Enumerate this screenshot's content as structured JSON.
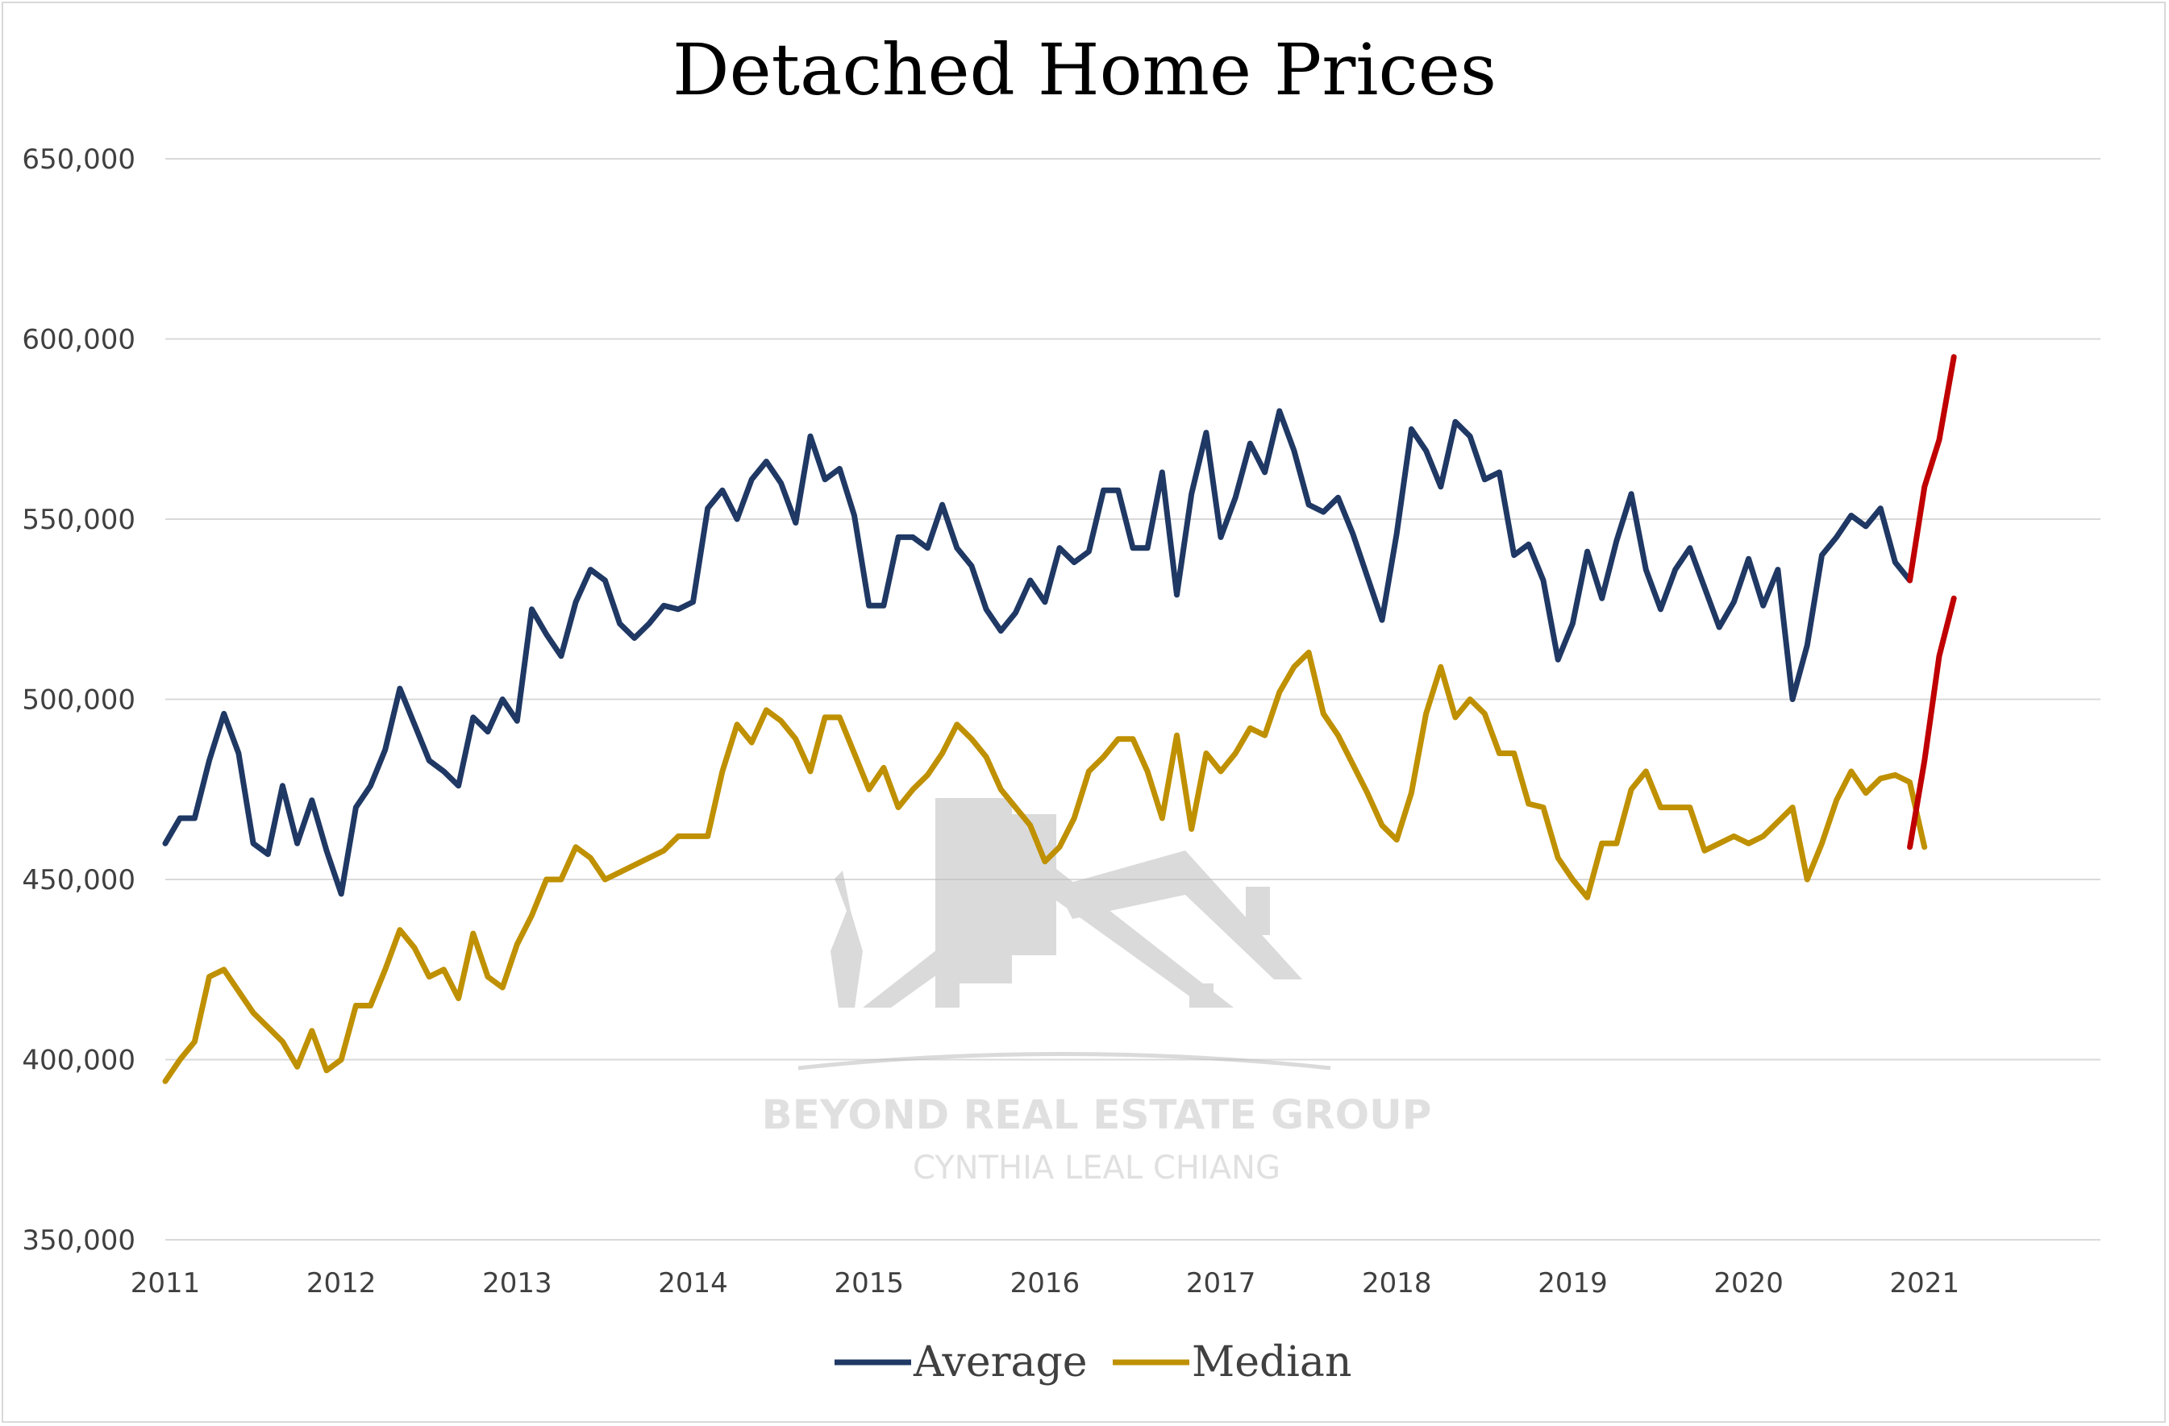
{
  "chart_data": {
    "type": "line",
    "title": "Detached Home Prices",
    "xlabel": "",
    "ylabel": "",
    "x_ticks": [
      "2011",
      "2012",
      "2013",
      "2014",
      "2015",
      "2016",
      "2017",
      "2018",
      "2019",
      "2020",
      "2021"
    ],
    "y_ticks": [
      "350,000",
      "400,000",
      "450,000",
      "500,000",
      "550,000",
      "600,000",
      "650,000"
    ],
    "ylim": [
      350000,
      650000
    ],
    "xlim": [
      2011,
      2022
    ],
    "grid": true,
    "legend_position": "bottom",
    "series": [
      {
        "name": "Average",
        "color": "#1f3864",
        "start": 2011.0,
        "step": 0.08333,
        "values": [
          460000,
          467000,
          467000,
          483000,
          496000,
          485000,
          460000,
          457000,
          476000,
          460000,
          472000,
          458000,
          446000,
          470000,
          476000,
          486000,
          503000,
          493000,
          483000,
          480000,
          476000,
          495000,
          491000,
          500000,
          494000,
          525000,
          518000,
          512000,
          527000,
          536000,
          533000,
          521000,
          517000,
          521000,
          526000,
          525000,
          527000,
          553000,
          558000,
          550000,
          561000,
          566000,
          560000,
          549000,
          573000,
          561000,
          564000,
          551000,
          526000,
          526000,
          545000,
          545000,
          542000,
          554000,
          542000,
          537000,
          525000,
          519000,
          524000,
          533000,
          527000,
          542000,
          538000,
          541000,
          558000,
          558000,
          542000,
          542000,
          563000,
          529000,
          557000,
          574000,
          545000,
          556000,
          571000,
          563000,
          580000,
          569000,
          554000,
          552000,
          556000,
          546000,
          534000,
          522000,
          546000,
          575000,
          569000,
          559000,
          577000,
          573000,
          561000,
          563000,
          540000,
          543000,
          533000,
          511000,
          521000,
          541000,
          528000,
          544000,
          557000,
          536000,
          525000,
          536000,
          542000,
          531000,
          520000,
          527000,
          539000,
          526000,
          536000,
          500000,
          515000,
          540000,
          545000,
          551000,
          548000,
          553000,
          538000,
          533000
        ],
        "forecast": {
          "color": "#c00000",
          "start": 2020.9167,
          "values": [
            533000,
            559000,
            572000,
            595000
          ]
        }
      },
      {
        "name": "Median",
        "color": "#bf9000",
        "start": 2011.0,
        "step": 0.08333,
        "values": [
          394000,
          400000,
          405000,
          423000,
          425000,
          419000,
          413000,
          409000,
          405000,
          398000,
          408000,
          397000,
          400000,
          415000,
          415000,
          425000,
          436000,
          431000,
          423000,
          425000,
          417000,
          435000,
          423000,
          420000,
          432000,
          440000,
          450000,
          450000,
          459000,
          456000,
          450000,
          452000,
          454000,
          456000,
          458000,
          462000,
          462000,
          462000,
          480000,
          493000,
          488000,
          497000,
          494000,
          489000,
          480000,
          495000,
          495000,
          485000,
          475000,
          481000,
          470000,
          475000,
          479000,
          485000,
          493000,
          489000,
          484000,
          475000,
          470000,
          465000,
          455000,
          459000,
          467000,
          480000,
          484000,
          489000,
          489000,
          480000,
          467000,
          490000,
          464000,
          485000,
          480000,
          485000,
          492000,
          490000,
          502000,
          509000,
          513000,
          496000,
          490000,
          482000,
          474000,
          465000,
          461000,
          474000,
          496000,
          509000,
          495000,
          500000,
          496000,
          485000,
          485000,
          471000,
          470000,
          456000,
          450000,
          445000,
          460000,
          460000,
          475000,
          480000,
          470000,
          470000,
          470000,
          458000,
          460000,
          462000,
          460000,
          462000,
          466000,
          470000,
          450000,
          460000,
          472000,
          480000,
          474000,
          478000,
          479000,
          477000,
          459000
        ],
        "forecast": {
          "color": "#c00000",
          "start": 2020.9167,
          "values": [
            459000,
            483000,
            512000,
            528000
          ]
        }
      }
    ],
    "watermark": {
      "line1": "BEYOND REAL ESTATE GROUP",
      "line2": "CYNTHIA LEAL CHIANG"
    }
  }
}
